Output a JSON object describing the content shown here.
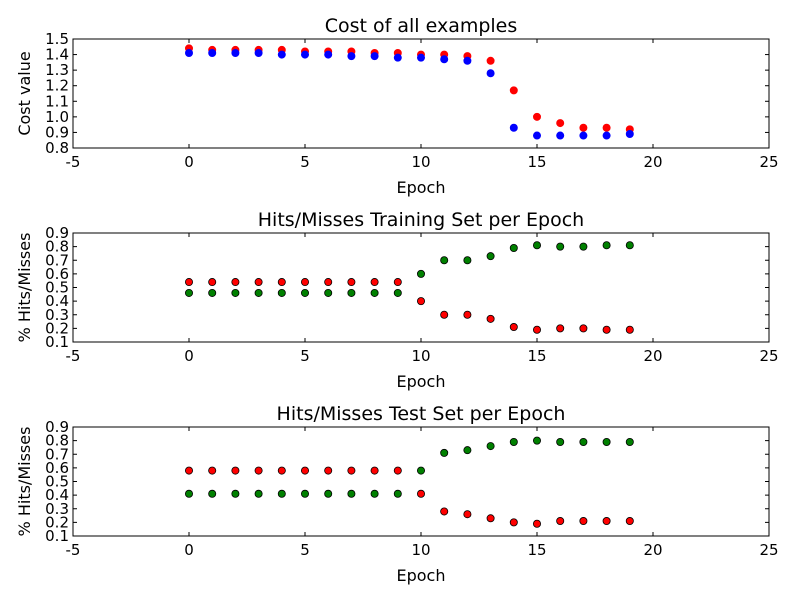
{
  "chart_data": [
    {
      "type": "scatter",
      "title": "Cost of all examples",
      "xlabel": "Epoch",
      "ylabel": "Cost value",
      "xlim": [
        -5,
        25
      ],
      "ylim": [
        0.8,
        1.5
      ],
      "xticks": [
        "-5",
        "0",
        "5",
        "10",
        "15",
        "20",
        "25"
      ],
      "yticks": [
        "0.8",
        "0.9",
        "1.0",
        "1.1",
        "1.2",
        "1.3",
        "1.4",
        "1.5"
      ],
      "x": [
        0,
        1,
        2,
        3,
        4,
        5,
        6,
        7,
        8,
        9,
        10,
        11,
        12,
        13,
        14,
        15,
        16,
        17,
        18,
        19
      ],
      "series": [
        {
          "color": "#ff0000",
          "edge": "#ff0000",
          "values": [
            1.44,
            1.43,
            1.43,
            1.43,
            1.43,
            1.42,
            1.42,
            1.42,
            1.41,
            1.41,
            1.4,
            1.4,
            1.39,
            1.36,
            1.17,
            1.0,
            0.96,
            0.93,
            0.93,
            0.92
          ]
        },
        {
          "color": "#0000ff",
          "edge": "#0000ff",
          "values": [
            1.41,
            1.41,
            1.41,
            1.41,
            1.4,
            1.4,
            1.4,
            1.39,
            1.39,
            1.38,
            1.38,
            1.37,
            1.36,
            1.28,
            0.93,
            0.88,
            0.88,
            0.88,
            0.88,
            0.89
          ]
        }
      ]
    },
    {
      "type": "scatter",
      "title": "Hits/Misses Training Set per Epoch",
      "xlabel": "Epoch",
      "ylabel": "% Hits/Misses",
      "xlim": [
        -5,
        25
      ],
      "ylim": [
        0.1,
        0.9
      ],
      "xticks": [
        "-5",
        "0",
        "5",
        "10",
        "15",
        "20",
        "25"
      ],
      "yticks": [
        "0.1",
        "0.2",
        "0.3",
        "0.4",
        "0.5",
        "0.6",
        "0.7",
        "0.8",
        "0.9"
      ],
      "x": [
        0,
        1,
        2,
        3,
        4,
        5,
        6,
        7,
        8,
        9,
        10,
        11,
        12,
        13,
        14,
        15,
        16,
        17,
        18,
        19
      ],
      "series": [
        {
          "color": "#ff0000",
          "edge": "#000000",
          "values": [
            0.54,
            0.54,
            0.54,
            0.54,
            0.54,
            0.54,
            0.54,
            0.54,
            0.54,
            0.54,
            0.4,
            0.3,
            0.3,
            0.27,
            0.21,
            0.19,
            0.2,
            0.2,
            0.19,
            0.19
          ]
        },
        {
          "color": "#008000",
          "edge": "#000000",
          "values": [
            0.46,
            0.46,
            0.46,
            0.46,
            0.46,
            0.46,
            0.46,
            0.46,
            0.46,
            0.46,
            0.6,
            0.7,
            0.7,
            0.73,
            0.79,
            0.81,
            0.8,
            0.8,
            0.81,
            0.81
          ]
        }
      ]
    },
    {
      "type": "scatter",
      "title": "Hits/Misses Test Set per Epoch",
      "xlabel": "Epoch",
      "ylabel": "% Hits/Misses",
      "xlim": [
        -5,
        25
      ],
      "ylim": [
        0.1,
        0.9
      ],
      "xticks": [
        "-5",
        "0",
        "5",
        "10",
        "15",
        "20",
        "25"
      ],
      "yticks": [
        "0.1",
        "0.2",
        "0.3",
        "0.4",
        "0.5",
        "0.6",
        "0.7",
        "0.8",
        "0.9"
      ],
      "x": [
        0,
        1,
        2,
        3,
        4,
        5,
        6,
        7,
        8,
        9,
        10,
        11,
        12,
        13,
        14,
        15,
        16,
        17,
        18,
        19
      ],
      "series": [
        {
          "color": "#ff0000",
          "edge": "#000000",
          "values": [
            0.58,
            0.58,
            0.58,
            0.58,
            0.58,
            0.58,
            0.58,
            0.58,
            0.58,
            0.58,
            0.41,
            0.28,
            0.26,
            0.23,
            0.2,
            0.19,
            0.21,
            0.21,
            0.21,
            0.21
          ]
        },
        {
          "color": "#008000",
          "edge": "#000000",
          "values": [
            0.41,
            0.41,
            0.41,
            0.41,
            0.41,
            0.41,
            0.41,
            0.41,
            0.41,
            0.41,
            0.58,
            0.71,
            0.73,
            0.76,
            0.79,
            0.8,
            0.79,
            0.79,
            0.79,
            0.79
          ]
        }
      ]
    }
  ]
}
